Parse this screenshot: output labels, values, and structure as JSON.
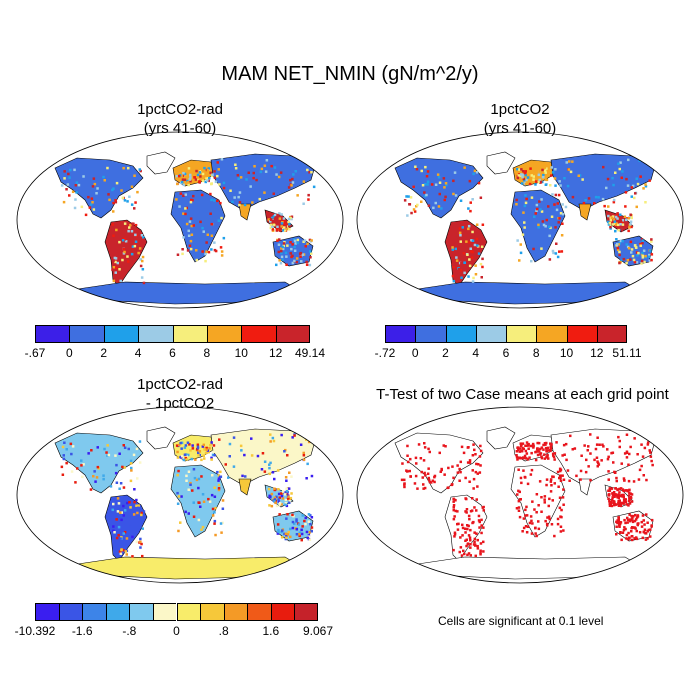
{
  "title": "MAM NET_NMIN (gN/m^2/y)",
  "panels": [
    {
      "title_line1": "1pctCO2-rad",
      "title_line2": "(yrs 41-60)"
    },
    {
      "title_line1": "1pctCO2",
      "title_line2": "(yrs 41-60)"
    },
    {
      "title_line1": "1pctCO2-rad",
      "title_line2": "- 1pctCO2"
    },
    {
      "title_line1": "T-Test of two Case means at each grid point",
      "title_line2": ""
    }
  ],
  "colorbars": [
    {
      "colors": [
        "#3c1fe8",
        "#3f6fe0",
        "#1fa0ea",
        "#9ccbe6",
        "#f6ee7c",
        "#f5a623",
        "#f01c10",
        "#c9242b"
      ],
      "labels": [
        "-.67",
        "0",
        "2",
        "4",
        "6",
        "8",
        "10",
        "12",
        "49.14"
      ]
    },
    {
      "colors": [
        "#3c1fe8",
        "#3f6fe0",
        "#1fa0ea",
        "#9ccbe6",
        "#f6ee7c",
        "#f5a623",
        "#f01c10",
        "#c9242b"
      ],
      "labels": [
        "-.72",
        "0",
        "2",
        "4",
        "6",
        "8",
        "10",
        "12",
        "51.11"
      ]
    },
    {
      "colors": [
        "#3a1ef0",
        "#3a55e6",
        "#3d84e8",
        "#3fa9ea",
        "#7fc9ee",
        "#fbf7c8",
        "#f8ec6a",
        "#f6c83a",
        "#f49a26",
        "#f05a18",
        "#e81c0e",
        "#c5222a"
      ],
      "labels": [
        "-10.392",
        "-1.6",
        "-.8",
        "0",
        ".8",
        "1.6",
        "9.067"
      ]
    }
  ],
  "footnote": "Cells are significant at 0.1 level",
  "chart_data": [
    {
      "type": "heatmap",
      "title": "1pctCO2-rad (yrs 41-60)",
      "value_range": [
        -0.67,
        49.14
      ],
      "levels": [
        -0.67,
        0,
        2,
        4,
        6,
        8,
        10,
        12,
        49.14
      ],
      "dominant_regions": {
        "tropics": "10-49",
        "high_latitudes": "0-2",
        "antarctica": "0-2"
      }
    },
    {
      "type": "heatmap",
      "title": "1pctCO2 (yrs 41-60)",
      "value_range": [
        -0.72,
        51.11
      ],
      "levels": [
        -0.72,
        0,
        2,
        4,
        6,
        8,
        10,
        12,
        51.11
      ],
      "dominant_regions": {
        "tropics": "10-51",
        "high_latitudes": "0-2",
        "antarctica": "0-2"
      }
    },
    {
      "type": "heatmap",
      "title": "1pctCO2-rad - 1pctCO2",
      "value_range": [
        -10.392,
        9.067
      ],
      "levels": [
        -10.392,
        -1.6,
        -0.8,
        0,
        0.8,
        1.6,
        9.067
      ]
    },
    {
      "type": "heatmap",
      "title": "T-Test of two Case means at each grid point",
      "significance_level": 0.1
    }
  ]
}
